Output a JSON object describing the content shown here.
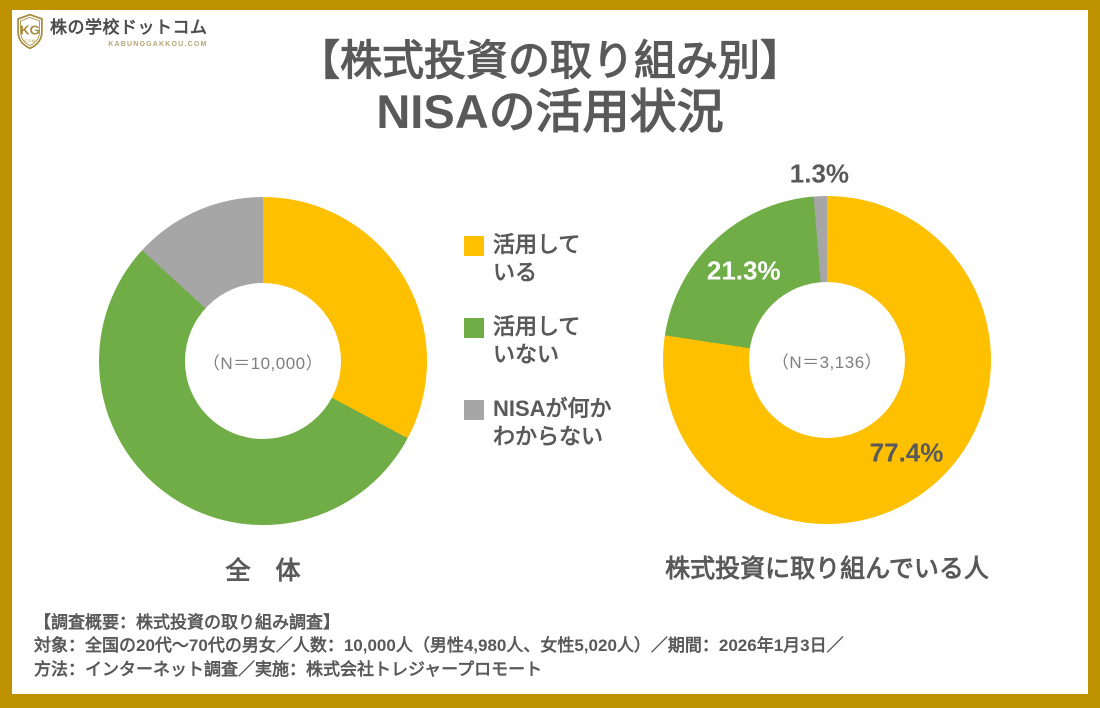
{
  "page": {
    "background": "#FFFFFF",
    "frame_color": "#BD9100"
  },
  "brand": {
    "name": "株の学校ドットコム",
    "domain_caption": "KABUNOGAKKOU.COM",
    "monogram": "KG",
    "shield_caption": "COM",
    "gold": "#A58B3C"
  },
  "title": {
    "line1": "【株式投資の取り組み別】",
    "line2": "NISAの活用状況",
    "color": "#595959"
  },
  "legend": {
    "items": [
      {
        "label_line1": "活用して",
        "label_line2": "いる",
        "color": "#FFC000"
      },
      {
        "label_line1": "活用して",
        "label_line2": "いない",
        "color": "#70AD47"
      },
      {
        "label_line1": "NISAが何か",
        "label_line2": "わからない",
        "color": "#A6A6A6"
      }
    ]
  },
  "chart_data": [
    {
      "type": "pie",
      "subtype": "donut",
      "caption": "全　体",
      "center_label": "（N＝10,000）",
      "categories": [
        "活用している",
        "活用していない",
        "NISAが何かわからない"
      ],
      "values": [
        32.8,
        54.0,
        13.2
      ],
      "labels_visible": false,
      "labels": [
        null,
        null,
        null
      ],
      "label_colors": [
        null,
        null,
        null
      ],
      "colors": [
        "#FFC000",
        "#70AD47",
        "#A6A6A6"
      ],
      "start_angle_deg": 0,
      "direction": "clockwise",
      "legend_position": "right-of-chart"
    },
    {
      "type": "pie",
      "subtype": "donut",
      "caption": "株式投資に取り組んでいる人",
      "center_label": "（N＝3,136）",
      "categories": [
        "活用している",
        "活用していない",
        "NISAが何かわからない"
      ],
      "values": [
        77.4,
        21.3,
        1.3
      ],
      "labels_visible": true,
      "labels": [
        "77.4%",
        "21.3%",
        "1.3%"
      ],
      "label_colors": [
        "#595959",
        "#FFFFFF",
        "#595959"
      ],
      "colors": [
        "#FFC000",
        "#70AD47",
        "#A6A6A6"
      ],
      "start_angle_deg": 0,
      "direction": "clockwise",
      "legend_position": "left-of-chart"
    }
  ],
  "footer": {
    "line1": "【調査概要：株式投資の取り組み調査】",
    "line2": "対象：全国の20代～70代の男女／人数：10,000人（男性4,980人、女性5,020人）／期間：2026年1月3日／",
    "line3": "方法：インターネット調査／実施：株式会社トレジャープロモート"
  }
}
